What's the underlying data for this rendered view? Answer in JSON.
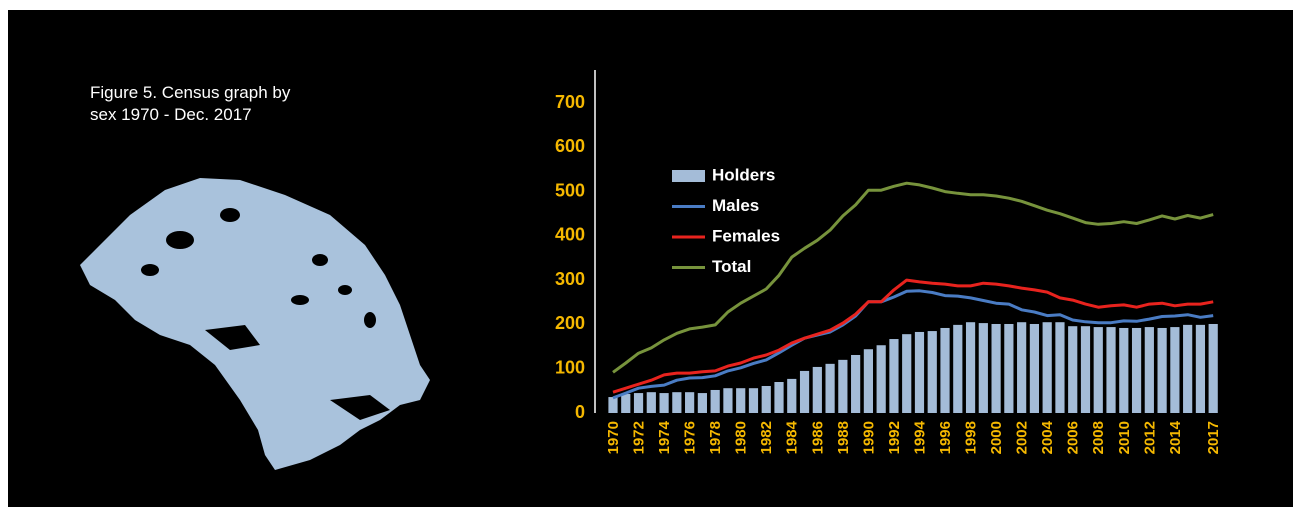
{
  "chart_data": {
    "type": "bar_line",
    "title": "Figure 5. Census graph by sex 1970 - Dec. 2017",
    "categories": [
      "1970",
      null,
      "1972",
      null,
      "1974",
      null,
      "1976",
      null,
      "1978",
      null,
      "1980",
      null,
      "1982",
      null,
      "1984",
      null,
      "1986",
      null,
      "1988",
      null,
      "1990",
      null,
      "1992",
      null,
      "1994",
      null,
      "1996",
      null,
      "1998",
      null,
      "2000",
      null,
      "2002",
      null,
      "2004",
      null,
      "2006",
      null,
      "2008",
      null,
      "2010",
      null,
      "2012",
      null,
      "2014",
      null,
      null,
      "2017"
    ],
    "series": [
      {
        "name": "Holders",
        "kind": "bar",
        "color": "#a4bcd8",
        "values": [
          36,
          43,
          45,
          47,
          45,
          47,
          47,
          45,
          52,
          56,
          56,
          56,
          61,
          70,
          77,
          95,
          104,
          111,
          120,
          131,
          144,
          153,
          167,
          178,
          183,
          185,
          192,
          199,
          205,
          203,
          201,
          201,
          205,
          201,
          205,
          205,
          196,
          196,
          194,
          194,
          192,
          192,
          194,
          192,
          194,
          199,
          199,
          201
        ]
      },
      {
        "name": "Males",
        "kind": "line",
        "color": "#4a7cc4",
        "values": [
          34,
          45,
          56,
          60,
          63,
          74,
          79,
          80,
          84,
          95,
          102,
          112,
          120,
          136,
          153,
          169,
          176,
          183,
          199,
          219,
          251,
          251,
          262,
          275,
          276,
          272,
          265,
          264,
          260,
          254,
          248,
          246,
          233,
          228,
          220,
          222,
          210,
          206,
          204,
          204,
          208,
          207,
          212,
          218,
          219,
          222,
          216,
          220
        ]
      },
      {
        "name": "Females",
        "kind": "line",
        "color": "#e8231e",
        "values": [
          47,
          56,
          65,
          74,
          86,
          90,
          90,
          93,
          95,
          106,
          113,
          124,
          131,
          142,
          158,
          169,
          178,
          187,
          203,
          223,
          251,
          251,
          278,
          300,
          296,
          293,
          291,
          287,
          287,
          293,
          291,
          287,
          282,
          278,
          273,
          260,
          255,
          246,
          239,
          242,
          244,
          239,
          246,
          248,
          242,
          246,
          246,
          251
        ]
      },
      {
        "name": "Total",
        "kind": "line",
        "color": "#77933c",
        "values": [
          92,
          113,
          135,
          147,
          165,
          180,
          190,
          194,
          199,
          228,
          248,
          264,
          280,
          311,
          352,
          372,
          390,
          413,
          445,
          470,
          503,
          503,
          512,
          519,
          515,
          508,
          500,
          496,
          493,
          493,
          490,
          485,
          478,
          468,
          458,
          450,
          440,
          430,
          426,
          428,
          432,
          428,
          436,
          445,
          438,
          446,
          440,
          448
        ]
      }
    ],
    "ylim": [
      0,
      700
    ],
    "yticks": [
      0,
      100,
      200,
      300,
      400,
      500,
      600,
      700
    ],
    "grid": false,
    "legend": "upper left"
  }
}
